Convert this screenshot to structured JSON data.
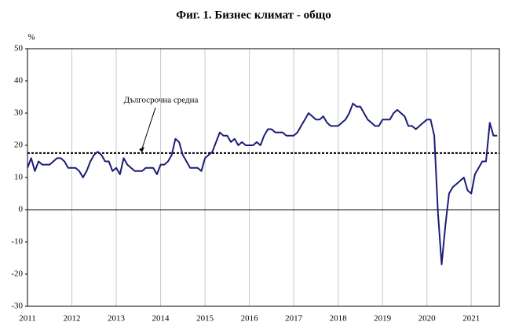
{
  "chart_data": {
    "type": "line",
    "title": "Фиг. 1. Бизнес климат - общо",
    "y_label": "%",
    "categories": [
      "2011",
      null,
      null,
      null,
      null,
      null,
      null,
      null,
      null,
      null,
      null,
      null,
      "2012",
      null,
      null,
      null,
      null,
      null,
      null,
      null,
      null,
      null,
      null,
      null,
      "2013",
      null,
      null,
      null,
      null,
      null,
      null,
      null,
      null,
      null,
      null,
      null,
      "2014",
      null,
      null,
      null,
      null,
      null,
      null,
      null,
      null,
      null,
      null,
      null,
      "2015",
      null,
      null,
      null,
      null,
      null,
      null,
      null,
      null,
      null,
      null,
      null,
      "2016",
      null,
      null,
      null,
      null,
      null,
      null,
      null,
      null,
      null,
      null,
      null,
      "2017",
      null,
      null,
      null,
      null,
      null,
      null,
      null,
      null,
      null,
      null,
      null,
      "2018",
      null,
      null,
      null,
      null,
      null,
      null,
      null,
      null,
      null,
      null,
      null,
      "2019",
      null,
      null,
      null,
      null,
      null,
      null,
      null,
      null,
      null,
      null,
      null,
      "2020",
      null,
      null,
      null,
      null,
      null,
      null,
      null,
      null,
      null,
      null,
      null,
      "2021",
      null,
      null,
      null,
      null,
      null,
      null,
      null
    ],
    "series": [
      {
        "name": "Бизнес климат - общо",
        "color": "#1c1c78",
        "values": [
          13,
          16,
          12,
          15,
          14,
          14,
          14,
          15,
          16,
          16,
          15,
          13,
          13,
          13,
          12,
          10,
          12,
          15,
          17,
          18,
          17,
          15,
          15,
          12,
          13,
          11,
          16,
          14,
          13,
          12,
          12,
          12,
          13,
          13,
          13,
          11,
          14,
          14,
          15,
          17,
          22,
          21,
          17,
          15,
          13,
          13,
          13,
          12,
          16,
          17,
          18,
          21,
          24,
          23,
          23,
          21,
          22,
          20,
          21,
          20,
          20,
          20,
          21,
          20,
          23,
          25,
          25,
          24,
          24,
          24,
          23,
          23,
          23,
          24,
          26,
          28,
          30,
          29,
          28,
          28,
          29,
          27,
          26,
          26,
          26,
          27,
          28,
          30,
          33,
          32,
          32,
          30,
          28,
          27,
          26,
          26,
          28,
          28,
          28,
          30,
          31,
          30,
          29,
          26,
          26,
          25,
          26,
          27,
          28,
          28,
          23,
          -1,
          -17,
          -5,
          5,
          7,
          8,
          9,
          10,
          6,
          5,
          11,
          13,
          15,
          15,
          27,
          23,
          23
        ]
      }
    ],
    "average": 17.6,
    "average_label": "Дългосрочна средна",
    "ylim": [
      -30,
      50
    ],
    "yticks": [
      -30,
      -20,
      -10,
      0,
      10,
      20,
      30,
      40,
      50
    ],
    "grid": true
  }
}
